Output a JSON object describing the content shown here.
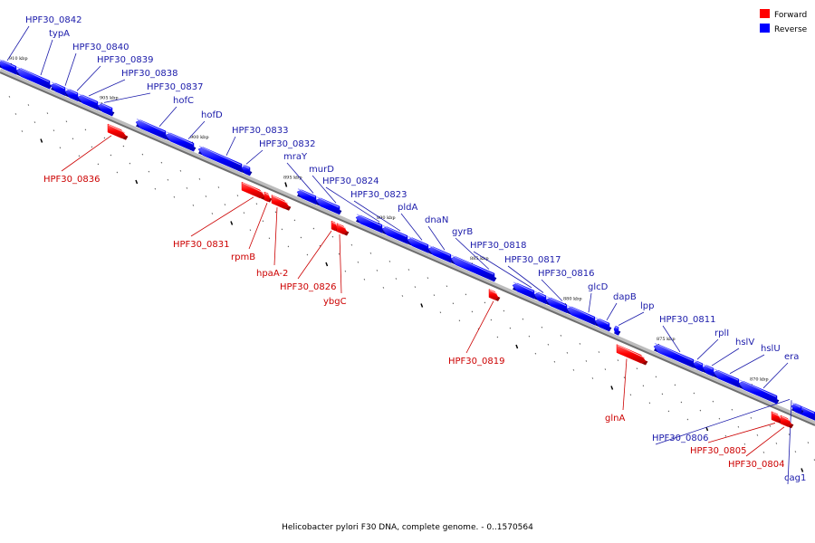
{
  "caption": "Helicobacter pylori F30 DNA, complete genome. - 0..1570564",
  "legend": [
    {
      "label": "Forward",
      "color": "#ff0000"
    },
    {
      "label": "Reverse",
      "color": "#0000ff"
    }
  ],
  "colors": {
    "forward": "#ff0000",
    "reverse": "#0000ff",
    "forward_label": "#cc0000",
    "reverse_label": "#1a1aaa"
  },
  "ticks": [
    {
      "label": "910 kbp",
      "kbp": 910
    },
    {
      "label": "905 kbp",
      "kbp": 905
    },
    {
      "label": "900 kbp",
      "kbp": 900
    },
    {
      "label": "895 kbp",
      "kbp": 895
    },
    {
      "label": "890 kbp",
      "kbp": 890
    },
    {
      "label": "885 kbp",
      "kbp": 885
    },
    {
      "label": "880 kbp",
      "kbp": 880
    },
    {
      "label": "875 kbp",
      "kbp": 875
    },
    {
      "label": "870 kbp",
      "kbp": 870
    }
  ],
  "genes": [
    {
      "name": "HPF30_0842",
      "strand": "reverse"
    },
    {
      "name": "typA",
      "strand": "reverse"
    },
    {
      "name": "HPF30_0840",
      "strand": "reverse"
    },
    {
      "name": "HPF30_0839",
      "strand": "reverse"
    },
    {
      "name": "HPF30_0838",
      "strand": "reverse"
    },
    {
      "name": "HPF30_0837",
      "strand": "reverse"
    },
    {
      "name": "hofC",
      "strand": "reverse"
    },
    {
      "name": "hofD",
      "strand": "reverse"
    },
    {
      "name": "HPF30_0836",
      "strand": "forward"
    },
    {
      "name": "HPF30_0833",
      "strand": "reverse"
    },
    {
      "name": "HPF30_0832",
      "strand": "reverse"
    },
    {
      "name": "mraY",
      "strand": "reverse"
    },
    {
      "name": "murD",
      "strand": "reverse"
    },
    {
      "name": "HPF30_0831",
      "strand": "forward"
    },
    {
      "name": "rpmB",
      "strand": "forward"
    },
    {
      "name": "hpaA-2",
      "strand": "forward"
    },
    {
      "name": "HPF30_0826",
      "strand": "forward"
    },
    {
      "name": "ybgC",
      "strand": "forward"
    },
    {
      "name": "HPF30_0824",
      "strand": "reverse"
    },
    {
      "name": "HPF30_0823",
      "strand": "reverse"
    },
    {
      "name": "pldA",
      "strand": "reverse"
    },
    {
      "name": "dnaN",
      "strand": "reverse"
    },
    {
      "name": "gyrB",
      "strand": "reverse"
    },
    {
      "name": "HPF30_0819",
      "strand": "forward"
    },
    {
      "name": "HPF30_0818",
      "strand": "reverse"
    },
    {
      "name": "HPF30_0817",
      "strand": "reverse"
    },
    {
      "name": "HPF30_0816",
      "strand": "reverse"
    },
    {
      "name": "glcD",
      "strand": "reverse"
    },
    {
      "name": "dapB",
      "strand": "reverse"
    },
    {
      "name": "lpp",
      "strand": "reverse"
    },
    {
      "name": "glnA",
      "strand": "forward"
    },
    {
      "name": "HPF30_0811",
      "strand": "reverse"
    },
    {
      "name": "rplI",
      "strand": "reverse"
    },
    {
      "name": "hslV",
      "strand": "reverse"
    },
    {
      "name": "hslU",
      "strand": "reverse"
    },
    {
      "name": "era",
      "strand": "reverse"
    },
    {
      "name": "HPF30_0806",
      "strand": "reverse"
    },
    {
      "name": "HPF30_0805",
      "strand": "forward"
    },
    {
      "name": "HPF30_0804",
      "strand": "forward"
    },
    {
      "name": "cag1",
      "strand": "reverse"
    }
  ]
}
